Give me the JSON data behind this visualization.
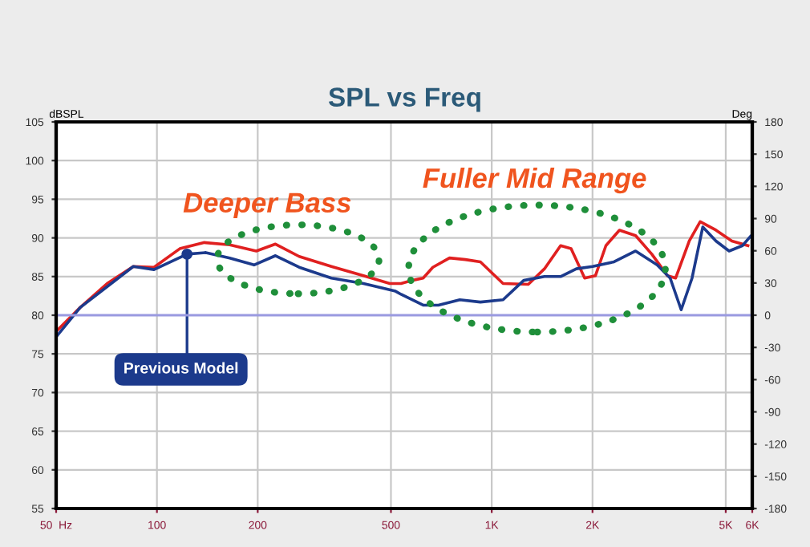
{
  "chart_data": {
    "type": "line",
    "title": "SPL vs Freq",
    "ylabel": "dBSPL",
    "y2label": "Deg",
    "series": [
      {
        "color": "#e02020",
        "x": [
          50,
          59,
          71,
          85,
          98,
          117,
          138,
          165,
          198,
          226,
          266,
          332,
          414,
          496,
          536,
          578,
          624,
          667,
          748,
          834,
          925,
          1081,
          1286,
          1437,
          1606,
          1726,
          1895,
          2040,
          2193,
          2407,
          2690,
          3007,
          3351,
          3543,
          3891,
          4194,
          4675,
          5215,
          5824
        ],
        "values": [
          77.9,
          81.0,
          84.1,
          86.3,
          86.2,
          88.6,
          89.4,
          89.1,
          88.3,
          89.2,
          87.6,
          86.3,
          85.1,
          84.1,
          84.1,
          84.5,
          84.8,
          86.2,
          87.4,
          87.2,
          86.9,
          84.1,
          84.0,
          86.0,
          89.0,
          88.6,
          84.8,
          85.1,
          89.0,
          91.0,
          90.3,
          87.9,
          85.1,
          84.8,
          89.6,
          92.1,
          91.0,
          89.6,
          89.0
        ]
      },
      {
        "name": "Previous Model",
        "color": "#1c3a8c",
        "x": [
          50,
          59,
          85,
          98,
          123,
          140,
          165,
          195,
          226,
          266,
          332,
          414,
          516,
          536,
          624,
          693,
          803,
          925,
          1081,
          1246,
          1437,
          1606,
          1790,
          2001,
          2319,
          2690,
          3119,
          3412,
          3680,
          3966,
          4269,
          4675,
          5117,
          5610,
          5927
        ],
        "values": [
          77.2,
          81.0,
          86.3,
          85.9,
          87.9,
          88.1,
          87.4,
          86.5,
          87.7,
          86.2,
          84.8,
          84.1,
          83.1,
          82.7,
          81.3,
          81.3,
          82.0,
          81.7,
          82.0,
          84.5,
          85.0,
          85.0,
          86.0,
          86.3,
          86.9,
          88.3,
          86.5,
          84.8,
          80.7,
          84.8,
          91.4,
          89.6,
          88.3,
          89.0,
          90.2
        ]
      }
    ],
    "log": "x",
    "xlim": [
      50,
      6000
    ],
    "xticks": [
      {
        "value": 50,
        "label": "50  Hz"
      },
      100,
      200,
      500,
      {
        "value": 1000,
        "label": "1K"
      },
      {
        "value": 2000,
        "label": "2K"
      },
      {
        "value": 5000,
        "label": "5K"
      },
      {
        "value": 6000,
        "label": "6K"
      }
    ],
    "ylim": [
      55,
      105
    ],
    "yticks": [
      55,
      60,
      65,
      70,
      75,
      80,
      85,
      90,
      95,
      100,
      105
    ],
    "y2lim": [
      -180,
      180
    ],
    "y2ticks": [
      -180,
      -150,
      -120,
      -90,
      -60,
      -30,
      0,
      30,
      60,
      90,
      120,
      150,
      180
    ],
    "ref_lines": [
      {
        "axis": "y2",
        "value": 0,
        "color": "#9a9ae0"
      }
    ],
    "annotations": [
      "Deeper Bass",
      "Fuller Mid Range"
    ],
    "grid": true,
    "legend": false,
    "line_style": "solid",
    "marker": "none"
  }
}
